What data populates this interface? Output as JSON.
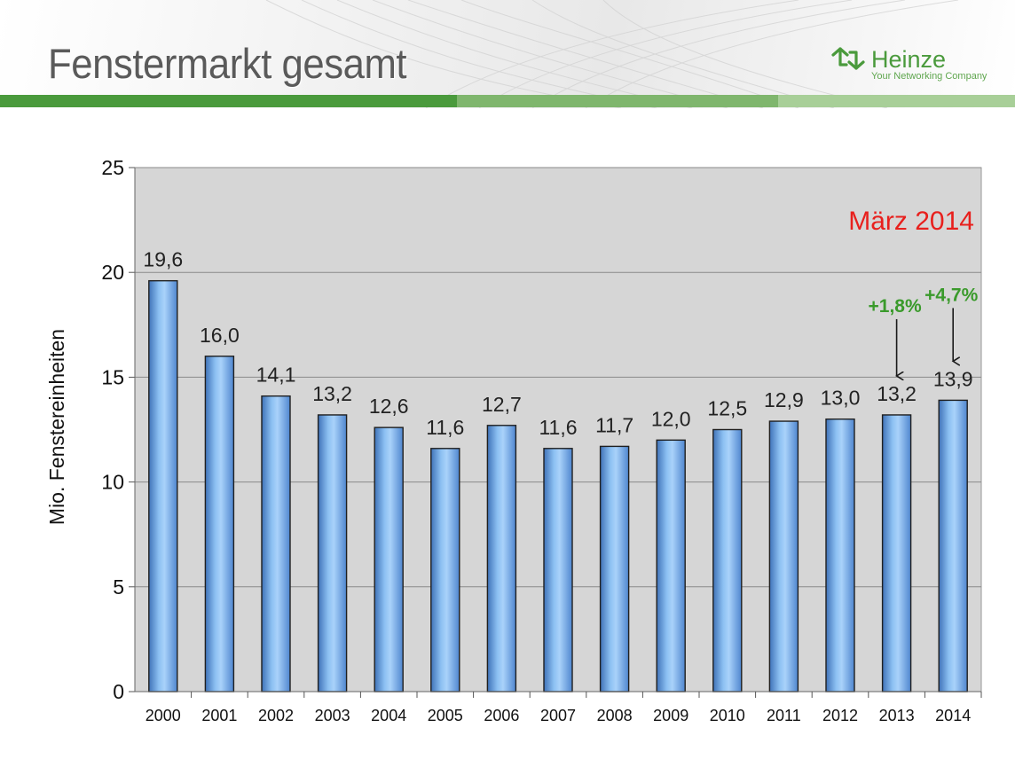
{
  "header": {
    "title": "Fenstermarkt gesamt",
    "logo_name": "Heinze",
    "logo_tagline": "Your Networking Company",
    "logo_icon": "heinze-arrows-icon"
  },
  "colors": {
    "brand_green": "#4a9a3c",
    "bar_fill": "#7fb3ea",
    "plot_bg": "#d6d6d6",
    "annotation_red": "#e8201d",
    "annotation_green": "#3a9a2b"
  },
  "chart_data": {
    "type": "bar",
    "categories": [
      "2000",
      "2001",
      "2002",
      "2003",
      "2004",
      "2005",
      "2006",
      "2007",
      "2008",
      "2009",
      "2010",
      "2011",
      "2012",
      "2013",
      "2014"
    ],
    "values": [
      19.6,
      16.0,
      14.1,
      13.2,
      12.6,
      11.6,
      12.7,
      11.6,
      11.7,
      12.0,
      12.5,
      12.9,
      13.0,
      13.2,
      13.9
    ],
    "value_labels": [
      "19,6",
      "16,0",
      "14,1",
      "13,2",
      "12,6",
      "11,6",
      "12,7",
      "11,6",
      "11,7",
      "12,0",
      "12,5",
      "12,9",
      "13,0",
      "13,2",
      "13,9"
    ],
    "ylabel": "Mio. Fenstereinheiten",
    "xlabel": "",
    "ylim": [
      0,
      25
    ],
    "yticks": [
      0,
      5,
      10,
      15,
      20,
      25
    ],
    "grid": true,
    "note": "März 2014",
    "annotations": [
      {
        "category": "2013",
        "text": "+1,8%"
      },
      {
        "category": "2014",
        "text": "+4,7%"
      }
    ]
  }
}
